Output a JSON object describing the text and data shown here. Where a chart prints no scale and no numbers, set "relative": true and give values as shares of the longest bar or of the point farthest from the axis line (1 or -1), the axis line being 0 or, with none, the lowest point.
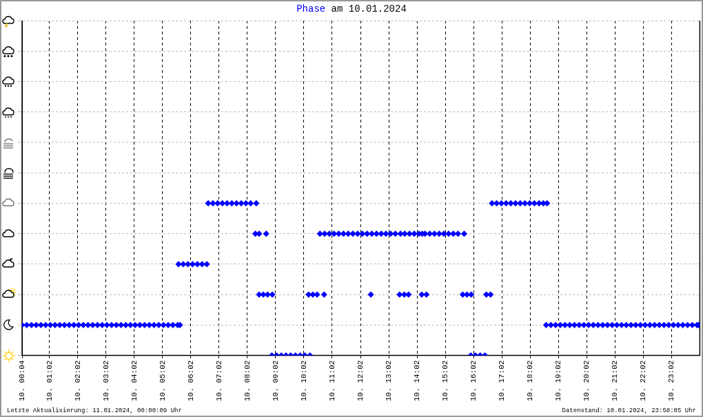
{
  "chart_data": {
    "type": "scatter",
    "title": "Phase am 10.01.2024",
    "relative": true,
    "marker": "diamond",
    "legend": false,
    "grid": true,
    "xlim": [
      "2024-01-10T00:04",
      "2024-01-11T00:02"
    ],
    "xticks": [
      {
        "value": "2024-01-10T00:04",
        "label": "10. 00:04"
      },
      {
        "value": "2024-01-10T01:02",
        "label": "10. 01:02"
      },
      {
        "value": "2024-01-10T02:02",
        "label": "10. 02:02"
      },
      {
        "value": "2024-01-10T03:02",
        "label": "10. 03:02"
      },
      {
        "value": "2024-01-10T04:02",
        "label": "10. 04:02"
      },
      {
        "value": "2024-01-10T05:02",
        "label": "10. 05:02"
      },
      {
        "value": "2024-01-10T06:02",
        "label": "10. 06:02"
      },
      {
        "value": "2024-01-10T07:02",
        "label": "10. 07:02"
      },
      {
        "value": "2024-01-10T08:02",
        "label": "10. 08:02"
      },
      {
        "value": "2024-01-10T09:02",
        "label": "10. 09:02"
      },
      {
        "value": "2024-01-10T10:02",
        "label": "10. 10:02"
      },
      {
        "value": "2024-01-10T11:02",
        "label": "10. 11:02"
      },
      {
        "value": "2024-01-10T12:02",
        "label": "10. 12:02"
      },
      {
        "value": "2024-01-10T13:02",
        "label": "10. 13:02"
      },
      {
        "value": "2024-01-10T14:02",
        "label": "10. 14:02"
      },
      {
        "value": "2024-01-10T15:02",
        "label": "10. 15:02"
      },
      {
        "value": "2024-01-10T16:02",
        "label": "10. 16:02"
      },
      {
        "value": "2024-01-10T17:02",
        "label": "10. 17:02"
      },
      {
        "value": "2024-01-10T18:02",
        "label": "10. 18:02"
      },
      {
        "value": "2024-01-10T19:02",
        "label": "10. 19:02"
      },
      {
        "value": "2024-01-10T20:02",
        "label": "10. 20:02"
      },
      {
        "value": "2024-01-10T21:02",
        "label": "10. 21:02"
      },
      {
        "value": "2024-01-10T22:02",
        "label": "10. 22:02"
      },
      {
        "value": "2024-01-10T23:02",
        "label": "10. 23:02"
      }
    ],
    "series": [
      {
        "color": "#0000ff",
        "x": [
          "2024-01-10T00:04",
          "2024-01-10T00:14",
          "2024-01-10T00:24",
          "2024-01-10T00:34",
          "2024-01-10T00:44",
          "2024-01-10T00:54",
          "2024-01-10T01:04",
          "2024-01-10T01:14",
          "2024-01-10T01:24",
          "2024-01-10T01:34",
          "2024-01-10T01:44",
          "2024-01-10T01:54",
          "2024-01-10T02:04",
          "2024-01-10T02:14",
          "2024-01-10T02:24",
          "2024-01-10T02:34",
          "2024-01-10T02:44",
          "2024-01-10T02:54",
          "2024-01-10T03:04",
          "2024-01-10T03:14",
          "2024-01-10T03:24",
          "2024-01-10T03:34",
          "2024-01-10T03:44",
          "2024-01-10T03:54",
          "2024-01-10T04:04",
          "2024-01-10T04:14",
          "2024-01-10T04:24",
          "2024-01-10T04:34",
          "2024-01-10T04:44",
          "2024-01-10T04:54",
          "2024-01-10T05:04",
          "2024-01-10T05:14",
          "2024-01-10T05:24",
          "2024-01-10T05:34",
          "2024-01-10T05:39",
          "2024-01-10T05:36",
          "2024-01-10T05:46",
          "2024-01-10T05:56",
          "2024-01-10T06:06",
          "2024-01-10T06:16",
          "2024-01-10T06:26",
          "2024-01-10T06:36",
          "2024-01-10T06:39",
          "2024-01-10T06:49",
          "2024-01-10T06:59",
          "2024-01-10T07:09",
          "2024-01-10T07:19",
          "2024-01-10T07:29",
          "2024-01-10T07:39",
          "2024-01-10T07:49",
          "2024-01-10T07:59",
          "2024-01-10T08:09",
          "2024-01-10T08:21",
          "2024-01-10T08:19",
          "2024-01-10T08:27",
          "2024-01-10T08:42",
          "2024-01-10T08:27",
          "2024-01-10T08:36",
          "2024-01-10T08:45",
          "2024-01-10T08:55",
          "2024-01-10T08:54",
          "2024-01-10T09:04",
          "2024-01-10T09:14",
          "2024-01-10T09:24",
          "2024-01-10T09:34",
          "2024-01-10T09:44",
          "2024-01-10T09:54",
          "2024-01-10T10:04",
          "2024-01-10T10:15",
          "2024-01-10T10:12",
          "2024-01-10T10:21",
          "2024-01-10T10:30",
          "2024-01-10T10:45",
          "2024-01-10T10:36",
          "2024-01-10T10:46",
          "2024-01-10T10:56",
          "2024-01-10T11:06",
          "2024-01-10T11:16",
          "2024-01-10T11:26",
          "2024-01-10T11:36",
          "2024-01-10T11:46",
          "2024-01-10T11:56",
          "2024-01-10T12:06",
          "2024-01-10T12:16",
          "2024-01-10T12:26",
          "2024-01-10T12:36",
          "2024-01-10T12:46",
          "2024-01-10T12:56",
          "2024-01-10T13:06",
          "2024-01-10T13:16",
          "2024-01-10T13:27",
          "2024-01-10T12:24",
          "2024-01-10T13:25",
          "2024-01-10T13:35",
          "2024-01-10T13:44",
          "2024-01-10T13:36",
          "2024-01-10T13:46",
          "2024-01-10T13:56",
          "2024-01-10T14:06",
          "2024-01-10T14:13",
          "2024-01-10T14:12",
          "2024-01-10T14:22",
          "2024-01-10T14:19",
          "2024-01-10T14:29",
          "2024-01-10T14:39",
          "2024-01-10T14:49",
          "2024-01-10T14:59",
          "2024-01-10T15:09",
          "2024-01-10T15:19",
          "2024-01-10T15:29",
          "2024-01-10T15:42",
          "2024-01-10T15:39",
          "2024-01-10T15:48",
          "2024-01-10T15:57",
          "2024-01-10T15:56",
          "2024-01-10T16:06",
          "2024-01-10T16:16",
          "2024-01-10T16:26",
          "2024-01-10T16:29",
          "2024-01-10T16:38",
          "2024-01-10T16:41",
          "2024-01-10T16:51",
          "2024-01-10T17:01",
          "2024-01-10T17:11",
          "2024-01-10T17:21",
          "2024-01-10T17:31",
          "2024-01-10T17:41",
          "2024-01-10T17:51",
          "2024-01-10T18:01",
          "2024-01-10T18:11",
          "2024-01-10T18:21",
          "2024-01-10T18:30",
          "2024-01-10T18:38",
          "2024-01-10T18:36",
          "2024-01-10T18:46",
          "2024-01-10T18:56",
          "2024-01-10T19:06",
          "2024-01-10T19:16",
          "2024-01-10T19:26",
          "2024-01-10T19:36",
          "2024-01-10T19:46",
          "2024-01-10T19:56",
          "2024-01-10T20:06",
          "2024-01-10T20:16",
          "2024-01-10T20:26",
          "2024-01-10T20:36",
          "2024-01-10T20:46",
          "2024-01-10T20:56",
          "2024-01-10T21:06",
          "2024-01-10T21:16",
          "2024-01-10T21:26",
          "2024-01-10T21:36",
          "2024-01-10T21:46",
          "2024-01-10T21:56",
          "2024-01-10T22:06",
          "2024-01-10T22:16",
          "2024-01-10T22:26",
          "2024-01-10T22:36",
          "2024-01-10T22:46",
          "2024-01-10T22:56",
          "2024-01-10T23:06",
          "2024-01-10T23:16",
          "2024-01-10T23:26",
          "2024-01-10T23:36",
          "2024-01-10T23:46",
          "2024-01-10T23:56",
          "2024-01-10T23:59"
        ],
        "values": [
          0.2,
          0.2,
          0.2,
          0.2,
          0.2,
          0.2,
          0.2,
          0.2,
          0.2,
          0.2,
          0.2,
          0.2,
          0.2,
          0.2,
          0.2,
          0.2,
          0.2,
          0.2,
          0.2,
          0.2,
          0.2,
          0.2,
          0.2,
          0.2,
          0.2,
          0.2,
          0.2,
          0.2,
          0.2,
          0.2,
          0.2,
          0.2,
          0.2,
          0.2,
          0.2,
          0.6,
          0.6,
          0.6,
          0.6,
          0.6,
          0.6,
          0.6,
          1,
          1,
          1,
          1,
          1,
          1,
          1,
          1,
          1,
          1,
          1,
          0.8,
          0.8,
          0.8,
          0.4,
          0.4,
          0.4,
          0.4,
          0,
          0,
          0,
          0,
          0,
          0,
          0,
          0,
          0,
          0.4,
          0.4,
          0.4,
          0.4,
          0.8,
          0.8,
          0.8,
          0.8,
          0.8,
          0.8,
          0.8,
          0.8,
          0.8,
          0.8,
          0.8,
          0.8,
          0.8,
          0.8,
          0.8,
          0.8,
          0.8,
          0.8,
          0.4,
          0.4,
          0.4,
          0.4,
          0.8,
          0.8,
          0.8,
          0.8,
          0.8,
          0.4,
          0.4,
          0.8,
          0.8,
          0.8,
          0.8,
          0.8,
          0.8,
          0.8,
          0.8,
          0.8,
          0.4,
          0.4,
          0.4,
          0,
          0,
          0,
          0,
          0.4,
          0.4,
          1,
          1,
          1,
          1,
          1,
          1,
          1,
          1,
          1,
          1,
          1,
          1,
          1,
          0.2,
          0.2,
          0.2,
          0.2,
          0.2,
          0.2,
          0.2,
          0.2,
          0.2,
          0.2,
          0.2,
          0.2,
          0.2,
          0.2,
          0.2,
          0.2,
          0.2,
          0.2,
          0.2,
          0.2,
          0.2,
          0.2,
          0.2,
          0.2,
          0.2,
          0.2,
          0.2,
          0.2,
          0.2,
          0.2,
          0.2,
          0.2,
          0.2,
          0.2
        ]
      }
    ],
    "annotations": [
      "Letzte Aktualisierung: 11.01.2024, 00:00:09 Uhr",
      "Datenstand: 10.01.2024, 23:58:05 Uhr"
    ]
  }
}
